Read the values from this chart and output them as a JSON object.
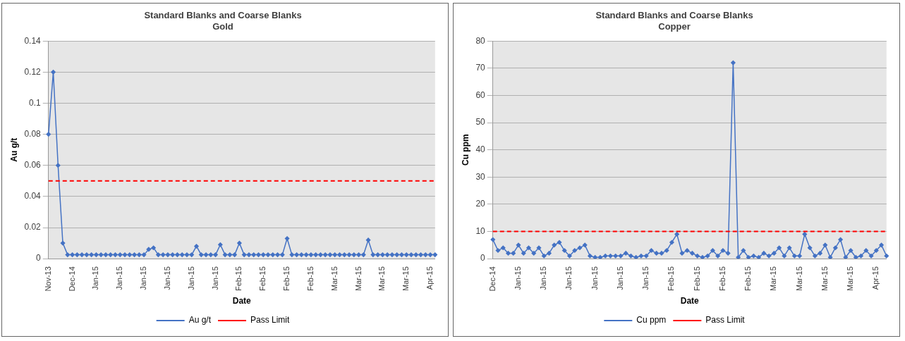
{
  "chart_data": [
    {
      "type": "line",
      "title": "Standard Blanks and Coarse Blanks",
      "subtitle": "Gold",
      "xlabel": "Date",
      "ylabel": "Au g/t",
      "categories": [
        "Nov-13",
        null,
        null,
        null,
        null,
        "Dec-14",
        null,
        null,
        null,
        null,
        "Jan-15",
        null,
        null,
        null,
        null,
        "Jan-15",
        null,
        null,
        null,
        null,
        "Jan-15",
        null,
        null,
        null,
        null,
        "Jan-15",
        null,
        null,
        null,
        null,
        "Jan-15",
        null,
        null,
        null,
        null,
        "Jan-15",
        null,
        null,
        null,
        null,
        "Feb-15",
        null,
        null,
        null,
        null,
        "Feb-15",
        null,
        null,
        null,
        null,
        "Feb-15",
        null,
        null,
        null,
        null,
        "Feb-15",
        null,
        null,
        null,
        null,
        "Mar-15",
        null,
        null,
        null,
        null,
        "Mar-15",
        null,
        null,
        null,
        null,
        "Mar-15",
        null,
        null,
        null,
        null,
        "Mar-15",
        null,
        null,
        null,
        null,
        "Apr-15",
        null
      ],
      "series": [
        {
          "name": "Au g/t",
          "color": "#4472c4",
          "values": [
            0.08,
            0.12,
            0.06,
            0.01,
            0.0025,
            0.0025,
            0.0025,
            0.0025,
            0.0025,
            0.0025,
            0.0025,
            0.0025,
            0.0025,
            0.0025,
            0.0025,
            0.0025,
            0.0025,
            0.0025,
            0.0025,
            0.0025,
            0.0025,
            0.006,
            0.007,
            0.0025,
            0.0025,
            0.0025,
            0.0025,
            0.0025,
            0.0025,
            0.0025,
            0.0025,
            0.008,
            0.0025,
            0.0025,
            0.0025,
            0.0025,
            0.009,
            0.0025,
            0.0025,
            0.0025,
            0.01,
            0.0025,
            0.0025,
            0.0025,
            0.0025,
            0.0025,
            0.0025,
            0.0025,
            0.0025,
            0.0025,
            0.013,
            0.0025,
            0.0025,
            0.0025,
            0.0025,
            0.0025,
            0.0025,
            0.0025,
            0.0025,
            0.0025,
            0.0025,
            0.0025,
            0.0025,
            0.0025,
            0.0025,
            0.0025,
            0.0025,
            0.012,
            0.0025,
            0.0025,
            0.0025,
            0.0025,
            0.0025,
            0.0025,
            0.0025,
            0.0025,
            0.0025,
            0.0025,
            0.0025,
            0.0025,
            0.0025,
            0.0025
          ]
        }
      ],
      "ylim": [
        0,
        0.14
      ],
      "yticks": [
        0,
        0.02,
        0.04,
        0.06,
        0.08,
        0.1,
        0.12,
        0.14
      ],
      "ref_lines": [
        {
          "axis": "y",
          "value": 0.05,
          "label": "Pass Limit",
          "color": "#ff0000",
          "line_style": "dashed"
        }
      ],
      "grid": "y",
      "legend": "bottom",
      "marker": "diamond",
      "line_style": "solid"
    },
    {
      "type": "line",
      "title": "Standard Blanks and Coarse Blanks",
      "subtitle": "Copper",
      "xlabel": "Date",
      "ylabel": "Cu ppm",
      "categories": [
        "Dec-14",
        null,
        null,
        null,
        null,
        "Jan-15",
        null,
        null,
        null,
        null,
        "Jan-15",
        null,
        null,
        null,
        null,
        "Jan-15",
        null,
        null,
        null,
        null,
        "Jan-15",
        null,
        null,
        null,
        null,
        "Jan-15",
        null,
        null,
        null,
        null,
        "Jan-15",
        null,
        null,
        null,
        null,
        "Feb-15",
        null,
        null,
        null,
        null,
        "Feb-15",
        null,
        null,
        null,
        null,
        "Feb-15",
        null,
        null,
        null,
        null,
        "Feb-15",
        null,
        null,
        null,
        null,
        "Mar-15",
        null,
        null,
        null,
        null,
        "Mar-15",
        null,
        null,
        null,
        null,
        "Mar-15",
        null,
        null,
        null,
        null,
        "Mar-15",
        null,
        null,
        null,
        null,
        "Apr-15",
        null,
        null
      ],
      "series": [
        {
          "name": "Cu ppm",
          "color": "#4472c4",
          "values": [
            7,
            3,
            4,
            2,
            2,
            5,
            2,
            4,
            2,
            4,
            1,
            2,
            5,
            6,
            3,
            1,
            3,
            4,
            5,
            1,
            0.5,
            0.5,
            1,
            1,
            1,
            1,
            2,
            1,
            0.5,
            1,
            1,
            3,
            2,
            2,
            3,
            6,
            9,
            2,
            3,
            2,
            1,
            0.5,
            1,
            3,
            1,
            3,
            2,
            72,
            0.5,
            3,
            0.5,
            1,
            0.5,
            2,
            1,
            2,
            4,
            1,
            4,
            1,
            1,
            9,
            4,
            1,
            2,
            5,
            0.5,
            4,
            7,
            0.5,
            3,
            0.5,
            1,
            3,
            1,
            3,
            5,
            1
          ]
        }
      ],
      "ylim": [
        0,
        80
      ],
      "yticks": [
        0,
        10,
        20,
        30,
        40,
        50,
        60,
        70,
        80
      ],
      "ref_lines": [
        {
          "axis": "y",
          "value": 10,
          "label": "Pass Limit",
          "color": "#ff0000",
          "line_style": "dashed"
        }
      ],
      "grid": "y",
      "legend": "bottom",
      "marker": "diamond",
      "line_style": "solid"
    }
  ]
}
